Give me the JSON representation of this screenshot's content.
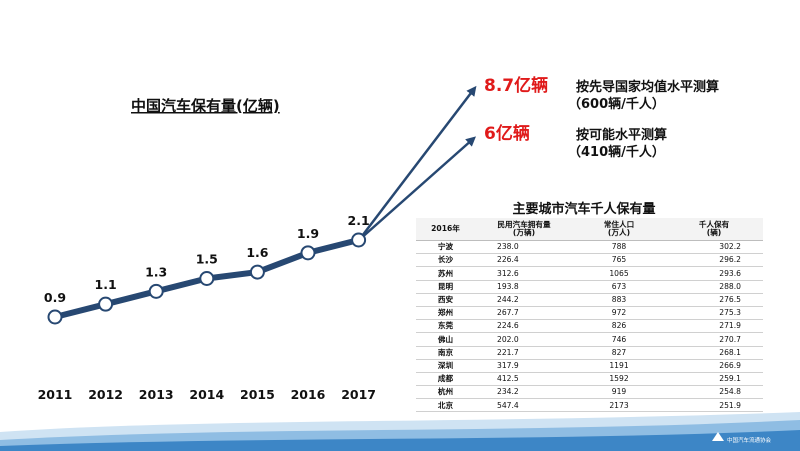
{
  "colors": {
    "line": "#274872",
    "point_fill": "#ffffff",
    "accent_red": "#e01a1a",
    "text": "#111111",
    "footer_wave": "#3d86c6"
  },
  "chart": {
    "title": "中国汽车保有量(亿辆)",
    "years": [
      "2011",
      "2012",
      "2013",
      "2014",
      "2015",
      "2016",
      "2017"
    ],
    "values": [
      0.9,
      1.1,
      1.3,
      1.5,
      1.6,
      1.9,
      2.1
    ],
    "value_labels": [
      "0.9",
      "1.1",
      "1.3",
      "1.5",
      "1.6",
      "1.9",
      "2.1"
    ]
  },
  "projections": [
    {
      "value_label": "8.7亿辆",
      "desc_line1": "按先导国家均值水平测算",
      "desc_line2": "（600辆/千人）"
    },
    {
      "value_label": "6亿辆",
      "desc_line1": "按可能水平测算",
      "desc_line2": "（410辆/千人）"
    }
  ],
  "table": {
    "title": "主要城市汽车千人保有量",
    "headers": {
      "year": "2016年",
      "vehicles_line1": "民用汽车拥有量",
      "vehicles_line2": "(万辆)",
      "population_line1": "常住人口",
      "population_line2": "(万人)",
      "per_thousand_line1": "千人保有",
      "per_thousand_line2": "(辆)"
    },
    "rows": [
      {
        "city": "宁波",
        "vehicles": "238.0",
        "population": "788",
        "per_thousand": "302.2"
      },
      {
        "city": "长沙",
        "vehicles": "226.4",
        "population": "765",
        "per_thousand": "296.2"
      },
      {
        "city": "苏州",
        "vehicles": "312.6",
        "population": "1065",
        "per_thousand": "293.6"
      },
      {
        "city": "昆明",
        "vehicles": "193.8",
        "population": "673",
        "per_thousand": "288.0"
      },
      {
        "city": "西安",
        "vehicles": "244.2",
        "population": "883",
        "per_thousand": "276.5"
      },
      {
        "city": "郑州",
        "vehicles": "267.7",
        "population": "972",
        "per_thousand": "275.3"
      },
      {
        "city": "东莞",
        "vehicles": "224.6",
        "population": "826",
        "per_thousand": "271.9"
      },
      {
        "city": "佛山",
        "vehicles": "202.0",
        "population": "746",
        "per_thousand": "270.7"
      },
      {
        "city": "南京",
        "vehicles": "221.7",
        "population": "827",
        "per_thousand": "268.1"
      },
      {
        "city": "深圳",
        "vehicles": "317.9",
        "population": "1191",
        "per_thousand": "266.9"
      },
      {
        "city": "成都",
        "vehicles": "412.5",
        "population": "1592",
        "per_thousand": "259.1"
      },
      {
        "city": "杭州",
        "vehicles": "234.2",
        "population": "919",
        "per_thousand": "254.8"
      },
      {
        "city": "北京",
        "vehicles": "547.4",
        "population": "2173",
        "per_thousand": "251.9"
      }
    ]
  },
  "footer": {
    "logo_text": "中国汽车流通协会"
  }
}
